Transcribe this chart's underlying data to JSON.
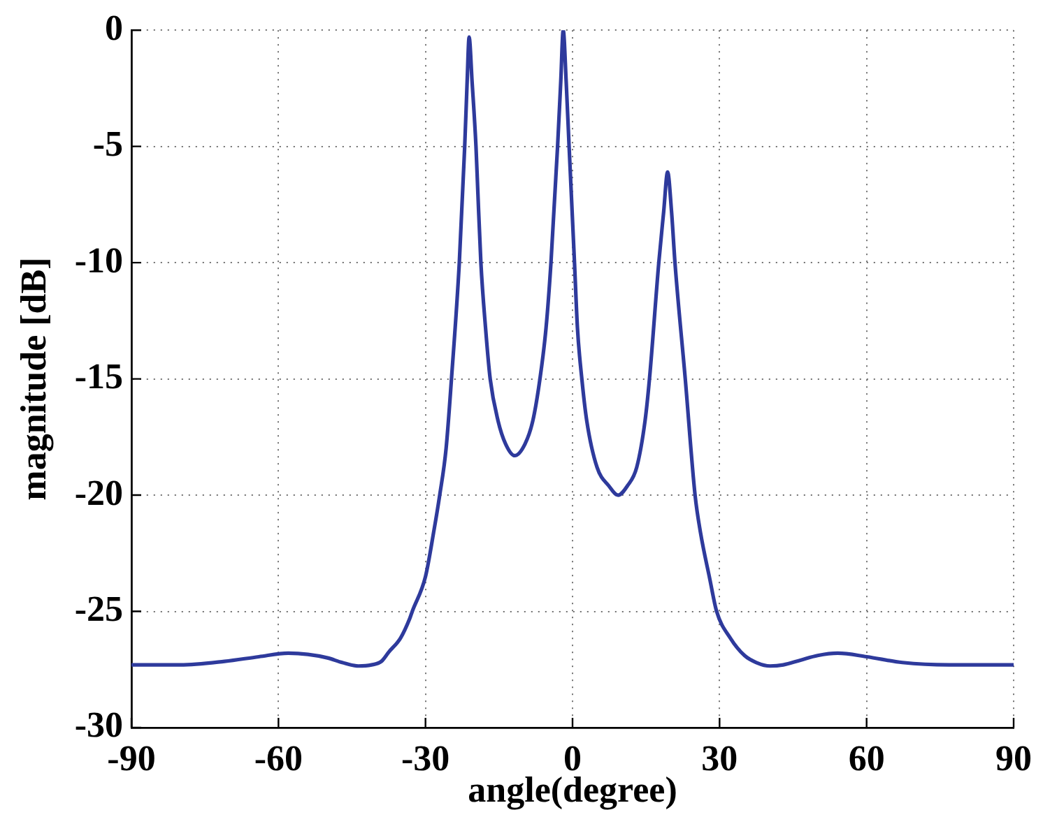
{
  "chart_data": {
    "type": "line",
    "xlabel": "angle(degree)",
    "ylabel": "magnitude [dB]",
    "x": [
      -90,
      -80,
      -71,
      -64,
      -58,
      -54,
      -50,
      -47,
      -43.7,
      -41,
      -39,
      -37.5,
      -35.1,
      -33.2,
      -32.7,
      -30,
      -28.3,
      -27.1,
      -25.8,
      -24.7,
      -23.1,
      -22.0,
      -21.5,
      -21.1,
      -20.5,
      -19.7,
      -19.35,
      -18.7,
      -17.75,
      -16.8,
      -15.2,
      -13.65,
      -11.8,
      -9.7,
      -8.1,
      -6.65,
      -5.4,
      -4.4,
      -3.05,
      -2.4,
      -1.9,
      -1.3,
      -0.7,
      0.4,
      1.0,
      1.9,
      2.9,
      5.0,
      7.4,
      9.3,
      11.2,
      13.1,
      14.8,
      15.7,
      17.6,
      18.6,
      19.4,
      20.2,
      20.9,
      23.0,
      25.0,
      26.1,
      28.0,
      29.4,
      32.2,
      35.1,
      37.5,
      40.3,
      43,
      46.5,
      50,
      54.1,
      60,
      67.3,
      76.8,
      90
    ],
    "values": [
      -27.3,
      -27.3,
      -27.15,
      -26.95,
      -26.8,
      -26.85,
      -27.0,
      -27.2,
      -27.35,
      -27.3,
      -27.15,
      -26.75,
      -26.15,
      -25.3,
      -25.0,
      -23.5,
      -21.55,
      -20.0,
      -18.0,
      -15.0,
      -10.0,
      -5.0,
      -2.2,
      -0.3,
      -2.2,
      -5.0,
      -6.8,
      -10.0,
      -12.8,
      -15.0,
      -16.8,
      -17.8,
      -18.3,
      -17.8,
      -16.8,
      -15.0,
      -12.8,
      -10.0,
      -5.0,
      -2.2,
      0,
      -2.2,
      -5.0,
      -10.0,
      -12.8,
      -15.0,
      -16.8,
      -18.8,
      -19.6,
      -20.0,
      -19.6,
      -18.8,
      -16.8,
      -15.0,
      -10.0,
      -7.8,
      -6.1,
      -7.8,
      -10.0,
      -15.0,
      -20.0,
      -21.6,
      -23.6,
      -25.0,
      -26.15,
      -26.9,
      -27.2,
      -27.35,
      -27.3,
      -27.1,
      -26.9,
      -26.8,
      -26.95,
      -27.2,
      -27.3,
      -27.3
    ],
    "color": "#2e3a9c",
    "line_style": "solid",
    "xlim": [
      -90,
      90
    ],
    "ylim": [
      -30,
      0
    ],
    "xticks": [
      -90,
      -60,
      -30,
      0,
      30,
      60,
      90
    ],
    "yticks": [
      -30,
      -25,
      -20,
      -15,
      -10,
      -5,
      0
    ],
    "grid": true
  }
}
